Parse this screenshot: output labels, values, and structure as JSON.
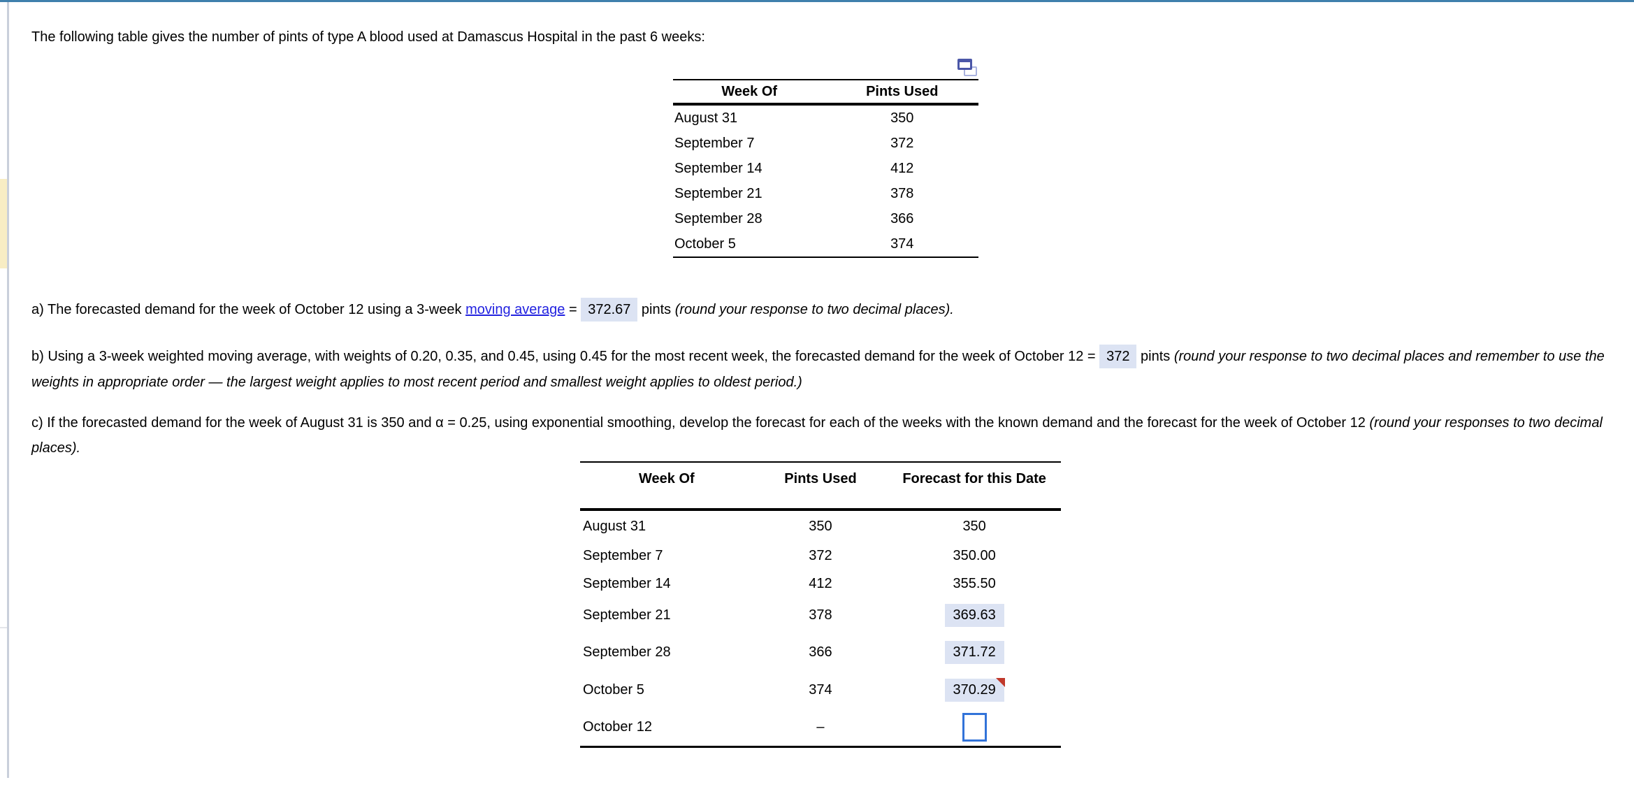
{
  "intro": "The following table gives the number of pints of type A blood used at Damascus Hospital in the past 6 weeks:",
  "colors": {
    "top_border": "#3f80ac",
    "left_margin_rule": "#c9cfdb",
    "left_margin_strip": "#f8edc4",
    "answer_highlight": "#dce3f3",
    "link_blue": "#2222e0",
    "input_border": "#3273d9",
    "flag_red": "#c0392b"
  },
  "table1": {
    "columns": [
      "Week Of",
      "Pints Used"
    ],
    "rows": [
      [
        "August 31",
        "350"
      ],
      [
        "September 7",
        "372"
      ],
      [
        "September 14",
        "412"
      ],
      [
        "September 21",
        "378"
      ],
      [
        "September 28",
        "366"
      ],
      [
        "October 5",
        "374"
      ]
    ],
    "copy_icon": "copy-icon"
  },
  "parts": {
    "a": {
      "prefix": "a) The forecasted demand for the week of October 12 using a 3-week ",
      "link_text": "moving average",
      "mid": " = ",
      "answer": "372.67",
      "after": " pints ",
      "note": "(round your response to two decimal places)."
    },
    "b": {
      "prefix": "b) Using a 3-week weighted moving average, with weights of 0.20, 0.35, and 0.45, using 0.45 for the most recent week, the forecasted demand for the week of October 12 = ",
      "answer": "372",
      "after": " pints ",
      "note": "(round your response to two decimal places and remember to use the weights in appropriate order — the largest weight applies to most recent period and smallest weight applies to oldest period.)"
    },
    "c": {
      "text": "c) If the forecasted demand for the week of August 31 is 350 and α = 0.25, using exponential smoothing, develop the forecast for each of the weeks with the known demand and the forecast for the week of October 12 ",
      "note": "(round your responses to two decimal places)."
    }
  },
  "table2": {
    "columns": [
      "Week Of",
      "Pints Used",
      "Forecast for this Date"
    ],
    "rows": [
      {
        "week": "August 31",
        "pints": "350",
        "forecast": "350",
        "style": "plain"
      },
      {
        "week": "September 7",
        "pints": "372",
        "forecast": "350.00",
        "style": "plain"
      },
      {
        "week": "September 14",
        "pints": "412",
        "forecast": "355.50",
        "style": "plain"
      },
      {
        "week": "September 21",
        "pints": "378",
        "forecast": "369.63",
        "style": "highlight"
      },
      {
        "week": "September 28",
        "pints": "366",
        "forecast": "371.72",
        "style": "highlight"
      },
      {
        "week": "October 5",
        "pints": "374",
        "forecast": "370.29",
        "style": "highlight-flag"
      },
      {
        "week": "October 12",
        "pints": "–",
        "forecast": "",
        "style": "input"
      }
    ]
  }
}
